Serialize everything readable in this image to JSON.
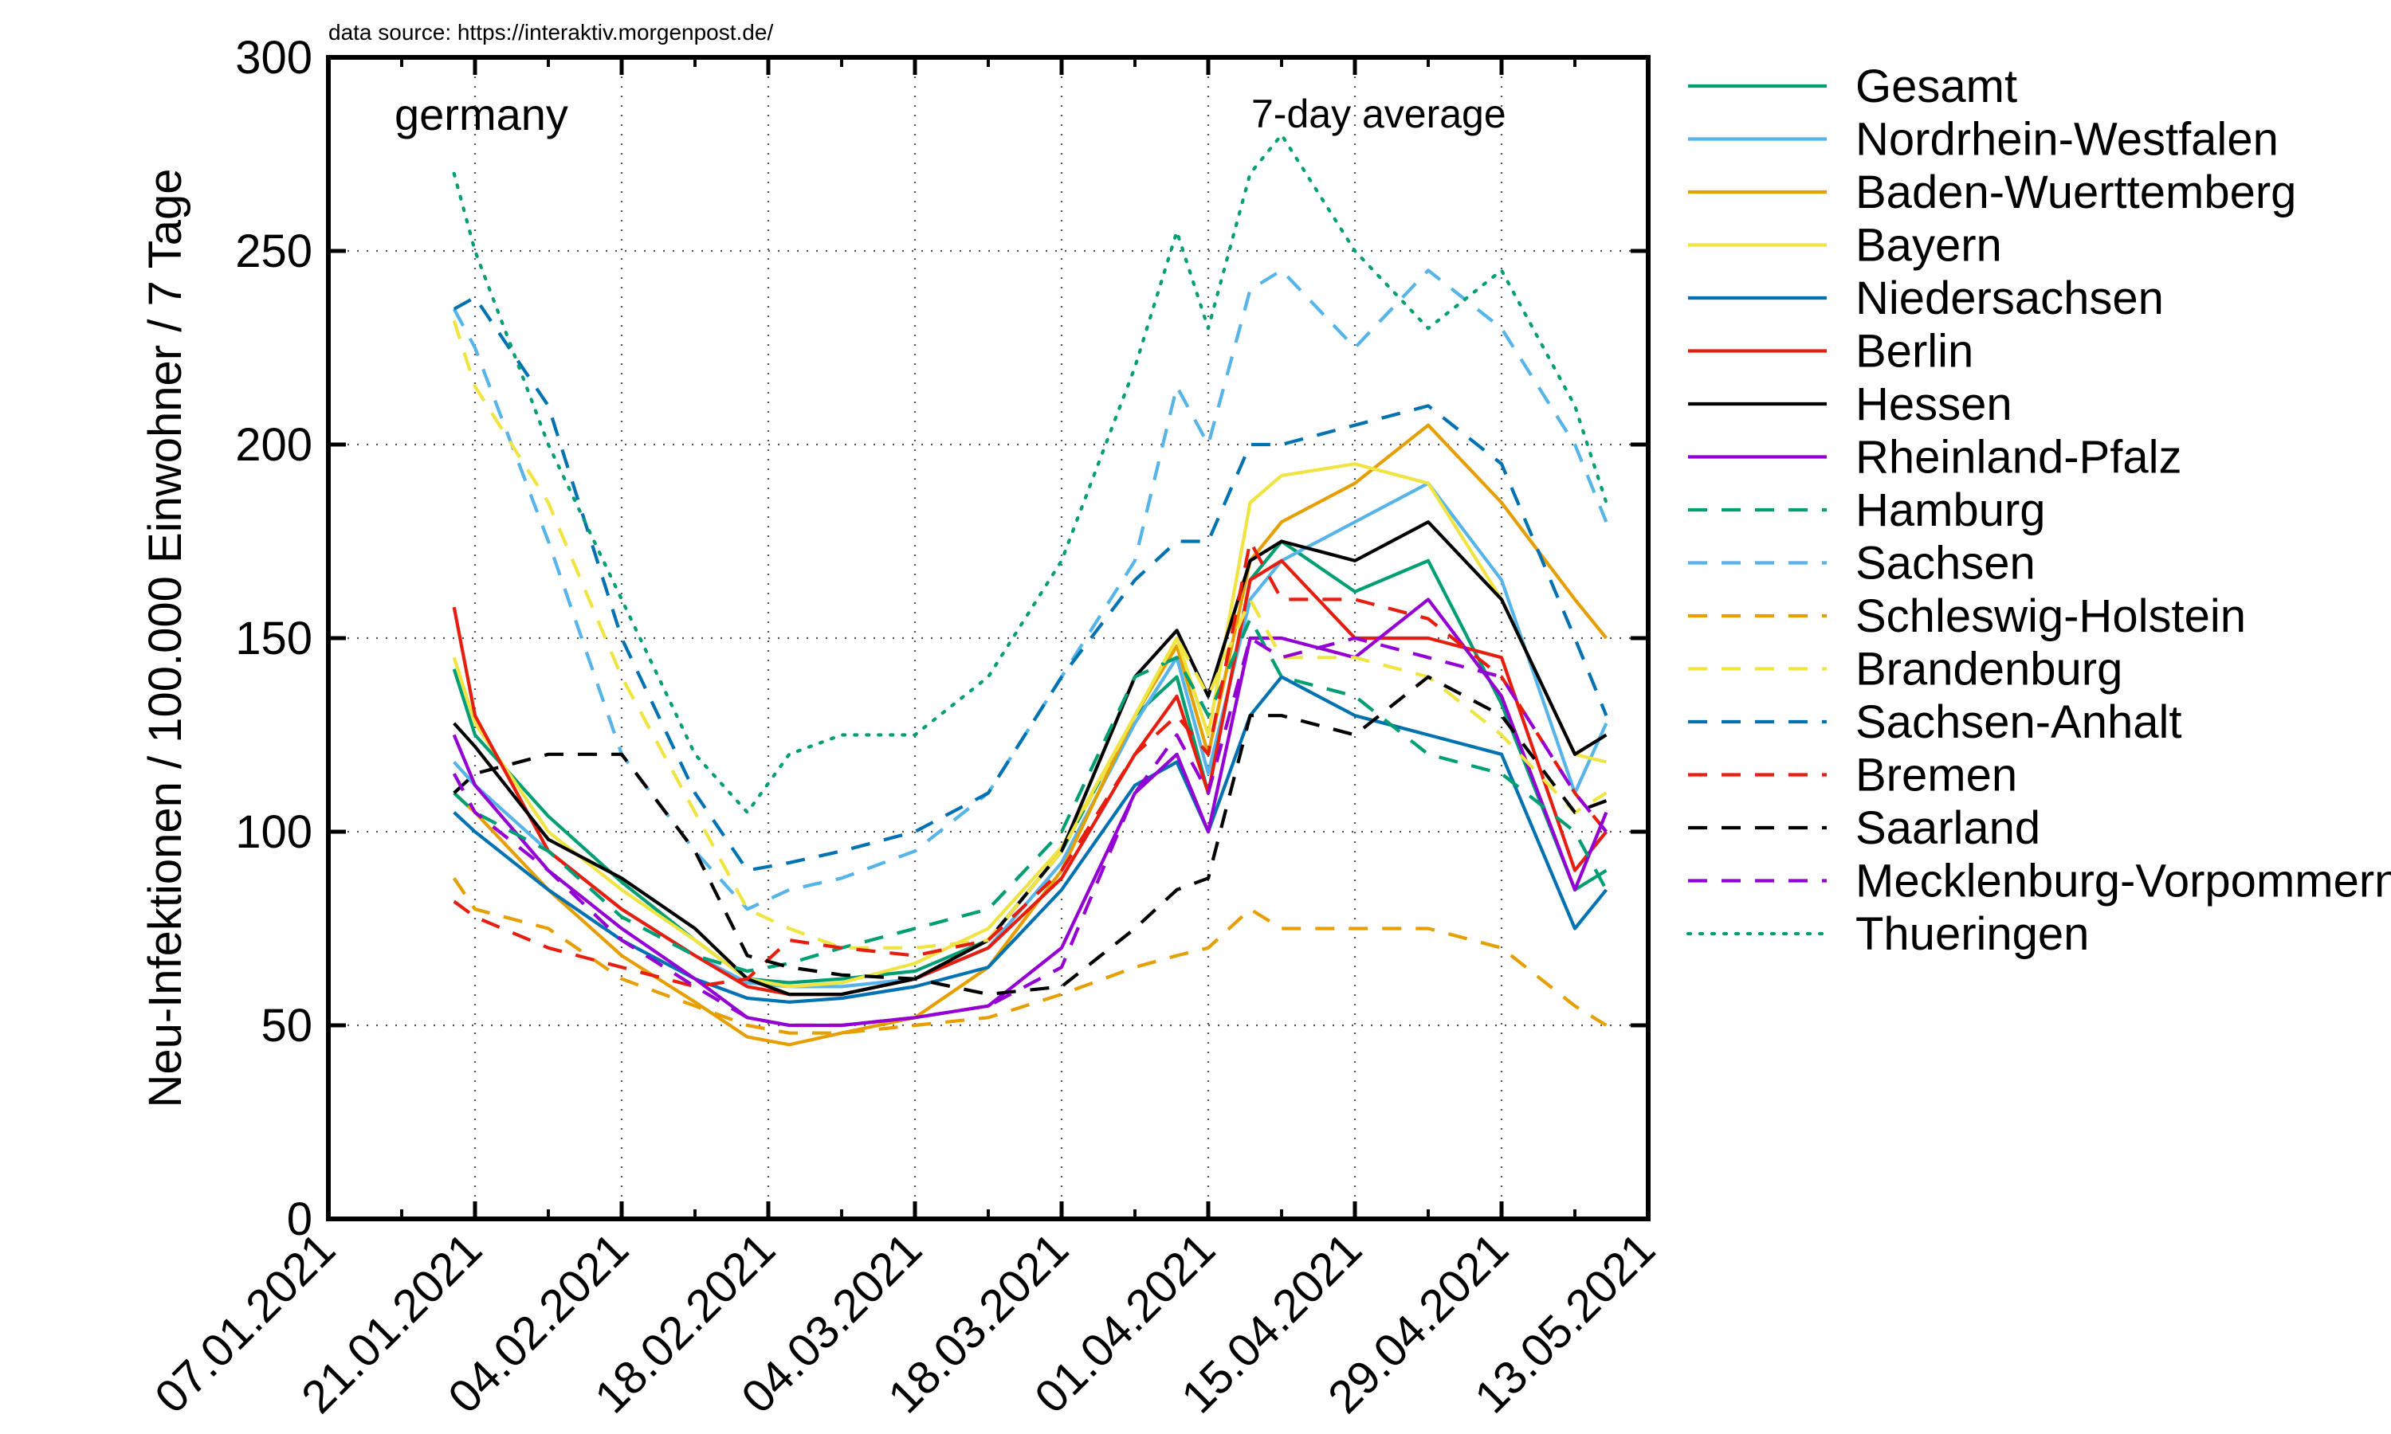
{
  "chart_data": {
    "type": "line",
    "source_note": "data source: https://interaktiv.morgenpost.de/",
    "region_label": "germany",
    "average_label": "7-day average",
    "ylabel": "Neu-Infektionen / 100.000 Einwohner / 7 Tage",
    "xlabel": "",
    "x_start": "2021-01-07",
    "xlim": [
      "07.01.2021",
      "13.05.2021"
    ],
    "ylim": [
      0,
      300
    ],
    "x_ticks": [
      "07.01.2021",
      "21.01.2021",
      "04.02.2021",
      "18.02.2021",
      "04.03.2021",
      "18.03.2021",
      "01.04.2021",
      "15.04.2021",
      "29.04.2021",
      "13.05.2021"
    ],
    "y_ticks": [
      "0",
      "50",
      "100",
      "150",
      "200",
      "250",
      "300"
    ],
    "grid": true,
    "legend_position": "outside-right",
    "series_key_days": [
      12,
      14,
      21,
      28,
      35,
      40,
      44,
      49,
      56,
      63,
      70,
      77,
      81,
      84,
      88,
      91,
      98,
      105,
      112,
      119,
      122
    ],
    "series": [
      {
        "name": "Gesamt",
        "color": "#009e73",
        "dash": "solid",
        "values": [
          142,
          125,
          104,
          87,
          72,
          62,
          61,
          62,
          64,
          72,
          95,
          130,
          140,
          110,
          165,
          175,
          162,
          170,
          133,
          85,
          90
        ]
      },
      {
        "name": "Nordrhein-Westfalen",
        "color": "#56b4e9",
        "dash": "solid",
        "values": [
          118,
          112,
          95,
          80,
          68,
          61,
          60,
          60,
          62,
          70,
          92,
          128,
          145,
          115,
          160,
          170,
          180,
          190,
          165,
          110,
          128
        ]
      },
      {
        "name": "Baden-Wuerttemberg",
        "color": "#e69f00",
        "dash": "solid",
        "values": [
          110,
          105,
          85,
          68,
          56,
          47,
          45,
          48,
          52,
          65,
          90,
          130,
          148,
          120,
          170,
          180,
          190,
          205,
          185,
          160,
          150
        ]
      },
      {
        "name": "Bayern",
        "color": "#f0e442",
        "dash": "solid",
        "values": [
          145,
          128,
          100,
          85,
          72,
          62,
          60,
          61,
          66,
          75,
          96,
          130,
          150,
          125,
          185,
          192,
          195,
          190,
          160,
          120,
          118
        ]
      },
      {
        "name": "Niedersachsen",
        "color": "#0072b2",
        "dash": "solid",
        "values": [
          105,
          100,
          85,
          72,
          62,
          57,
          56,
          57,
          60,
          65,
          85,
          112,
          118,
          100,
          130,
          140,
          130,
          125,
          120,
          75,
          85
        ]
      },
      {
        "name": "Berlin",
        "color": "#e51e10",
        "dash": "solid",
        "values": [
          158,
          130,
          95,
          80,
          68,
          60,
          58,
          58,
          62,
          70,
          88,
          120,
          135,
          110,
          165,
          170,
          150,
          150,
          145,
          90,
          100
        ]
      },
      {
        "name": "Hessen",
        "color": "#000000",
        "dash": "solid",
        "values": [
          128,
          122,
          98,
          88,
          75,
          62,
          58,
          58,
          62,
          72,
          95,
          140,
          152,
          135,
          170,
          175,
          170,
          180,
          160,
          120,
          125
        ]
      },
      {
        "name": "Rheinland-Pfalz",
        "color": "#9400d3",
        "dash": "solid",
        "values": [
          125,
          112,
          90,
          75,
          62,
          52,
          50,
          50,
          52,
          55,
          70,
          110,
          120,
          100,
          150,
          150,
          145,
          160,
          135,
          85,
          105
        ]
      },
      {
        "name": "Hamburg",
        "color": "#009e73",
        "dash": "dashed",
        "values": [
          110,
          105,
          95,
          78,
          68,
          64,
          66,
          70,
          75,
          80,
          100,
          140,
          145,
          130,
          155,
          140,
          135,
          120,
          115,
          100,
          85
        ]
      },
      {
        "name": "Sachsen",
        "color": "#56b4e9",
        "dash": "dashed",
        "values": [
          235,
          225,
          175,
          120,
          95,
          80,
          85,
          88,
          95,
          110,
          140,
          170,
          215,
          200,
          240,
          245,
          225,
          245,
          230,
          200,
          180
        ]
      },
      {
        "name": "Schleswig-Holstein",
        "color": "#e69f00",
        "dash": "dashed",
        "values": [
          88,
          80,
          75,
          62,
          55,
          50,
          48,
          48,
          50,
          52,
          58,
          65,
          68,
          70,
          80,
          75,
          75,
          75,
          70,
          55,
          50
        ]
      },
      {
        "name": "Brandenburg",
        "color": "#f0e442",
        "dash": "dashed",
        "values": [
          232,
          215,
          185,
          140,
          105,
          80,
          75,
          70,
          70,
          72,
          95,
          130,
          150,
          135,
          160,
          145,
          145,
          140,
          125,
          105,
          110
        ]
      },
      {
        "name": "Sachsen-Anhalt",
        "color": "#0072b2",
        "dash": "dashed",
        "values": [
          235,
          238,
          210,
          150,
          110,
          90,
          92,
          95,
          100,
          110,
          140,
          165,
          175,
          175,
          200,
          200,
          205,
          210,
          195,
          150,
          130
        ]
      },
      {
        "name": "Bremen",
        "color": "#e51e10",
        "dash": "dashed",
        "values": [
          82,
          78,
          70,
          65,
          60,
          62,
          72,
          70,
          68,
          72,
          90,
          120,
          130,
          120,
          175,
          160,
          160,
          155,
          140,
          110,
          100
        ]
      },
      {
        "name": "Saarland",
        "color": "#000000",
        "dash": "dashed",
        "values": [
          110,
          115,
          120,
          120,
          95,
          68,
          65,
          63,
          62,
          58,
          60,
          75,
          85,
          88,
          130,
          130,
          125,
          140,
          130,
          105,
          108
        ]
      },
      {
        "name": "Mecklenburg-Vorpommern",
        "color": "#9400d3",
        "dash": "dashed",
        "values": [
          115,
          105,
          90,
          72,
          60,
          52,
          50,
          50,
          52,
          55,
          65,
          110,
          125,
          110,
          150,
          145,
          150,
          145,
          140,
          110,
          100
        ]
      },
      {
        "name": "Thueringen",
        "color": "#009e73",
        "dash": "dotted",
        "values": [
          270,
          250,
          200,
          160,
          120,
          105,
          120,
          125,
          125,
          140,
          170,
          220,
          255,
          230,
          270,
          280,
          250,
          230,
          245,
          210,
          185
        ]
      }
    ]
  }
}
